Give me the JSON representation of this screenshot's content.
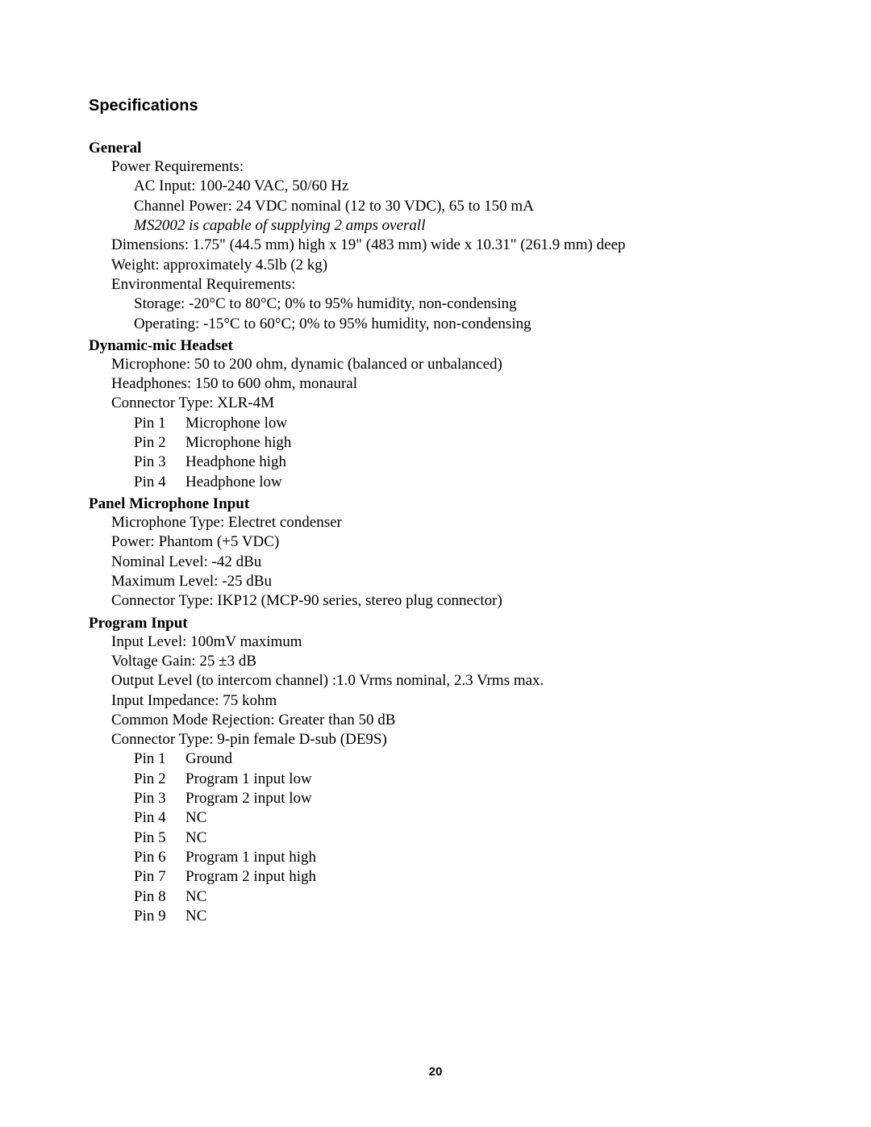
{
  "title": "Specifications",
  "page_number": "20",
  "general": {
    "heading": "General",
    "power_label": "Power Requirements:",
    "ac_input": "AC Input: 100-240 VAC, 50/60 Hz",
    "channel_power": "Channel Power: 24 VDC nominal (12 to 30 VDC), 65 to 150 mA",
    "note": "MS2002 is capable of supplying 2 amps overall",
    "dimensions": "Dimensions: 1.75\" (44.5 mm) high x 19\" (483 mm) wide x 10.31\" (261.9 mm) deep",
    "weight": "Weight: approximately 4.5lb (2 kg)",
    "env_label": "Environmental Requirements:",
    "storage": "Storage: -20°C to 80°C; 0% to 95% humidity, non-condensing",
    "operating": "Operating: -15°C to 60°C; 0% to 95% humidity, non-condensing"
  },
  "dynamic": {
    "heading": "Dynamic-mic Headset",
    "microphone": "Microphone: 50 to 200 ohm, dynamic (balanced or unbalanced)",
    "headphones": "Headphones: 150 to 600 ohm, monaural",
    "connector": "Connector Type: XLR-4M",
    "pins": [
      {
        "pin": "Pin 1",
        "desc": "Microphone low"
      },
      {
        "pin": "Pin 2",
        "desc": "Microphone high"
      },
      {
        "pin": "Pin 3",
        "desc": "Headphone high"
      },
      {
        "pin": "Pin 4",
        "desc": "Headphone low"
      }
    ]
  },
  "panel_mic": {
    "heading": "Panel Microphone Input",
    "type": "Microphone Type: Electret condenser",
    "power": "Power: Phantom (+5 VDC)",
    "nominal": "Nominal Level: -42 dBu",
    "maximum": "Maximum Level: -25 dBu",
    "connector": "Connector Type: IKP12 (MCP-90 series, stereo plug connector)"
  },
  "program": {
    "heading": "Program Input",
    "input_level": "Input Level: 100mV maximum",
    "voltage_gain": "Voltage Gain: 25 ±3 dB",
    "output_level": "Output Level (to intercom channel) :1.0 Vrms nominal, 2.3 Vrms max.",
    "impedance": "Input Impedance: 75 kohm",
    "cmr": "Common Mode Rejection: Greater than 50 dB",
    "connector": "Connector Type: 9-pin female D-sub (DE9S)",
    "pins": [
      {
        "pin": "Pin 1",
        "desc": "Ground"
      },
      {
        "pin": "Pin 2",
        "desc": "Program 1 input low"
      },
      {
        "pin": "Pin 3",
        "desc": "Program 2 input low"
      },
      {
        "pin": "Pin 4",
        "desc": "NC"
      },
      {
        "pin": "Pin 5",
        "desc": "NC"
      },
      {
        "pin": "Pin 6",
        "desc": "Program 1 input high"
      },
      {
        "pin": "Pin 7",
        "desc": "Program 2 input high"
      },
      {
        "pin": "Pin 8",
        "desc": "NC"
      },
      {
        "pin": "Pin 9",
        "desc": "NC"
      }
    ]
  }
}
